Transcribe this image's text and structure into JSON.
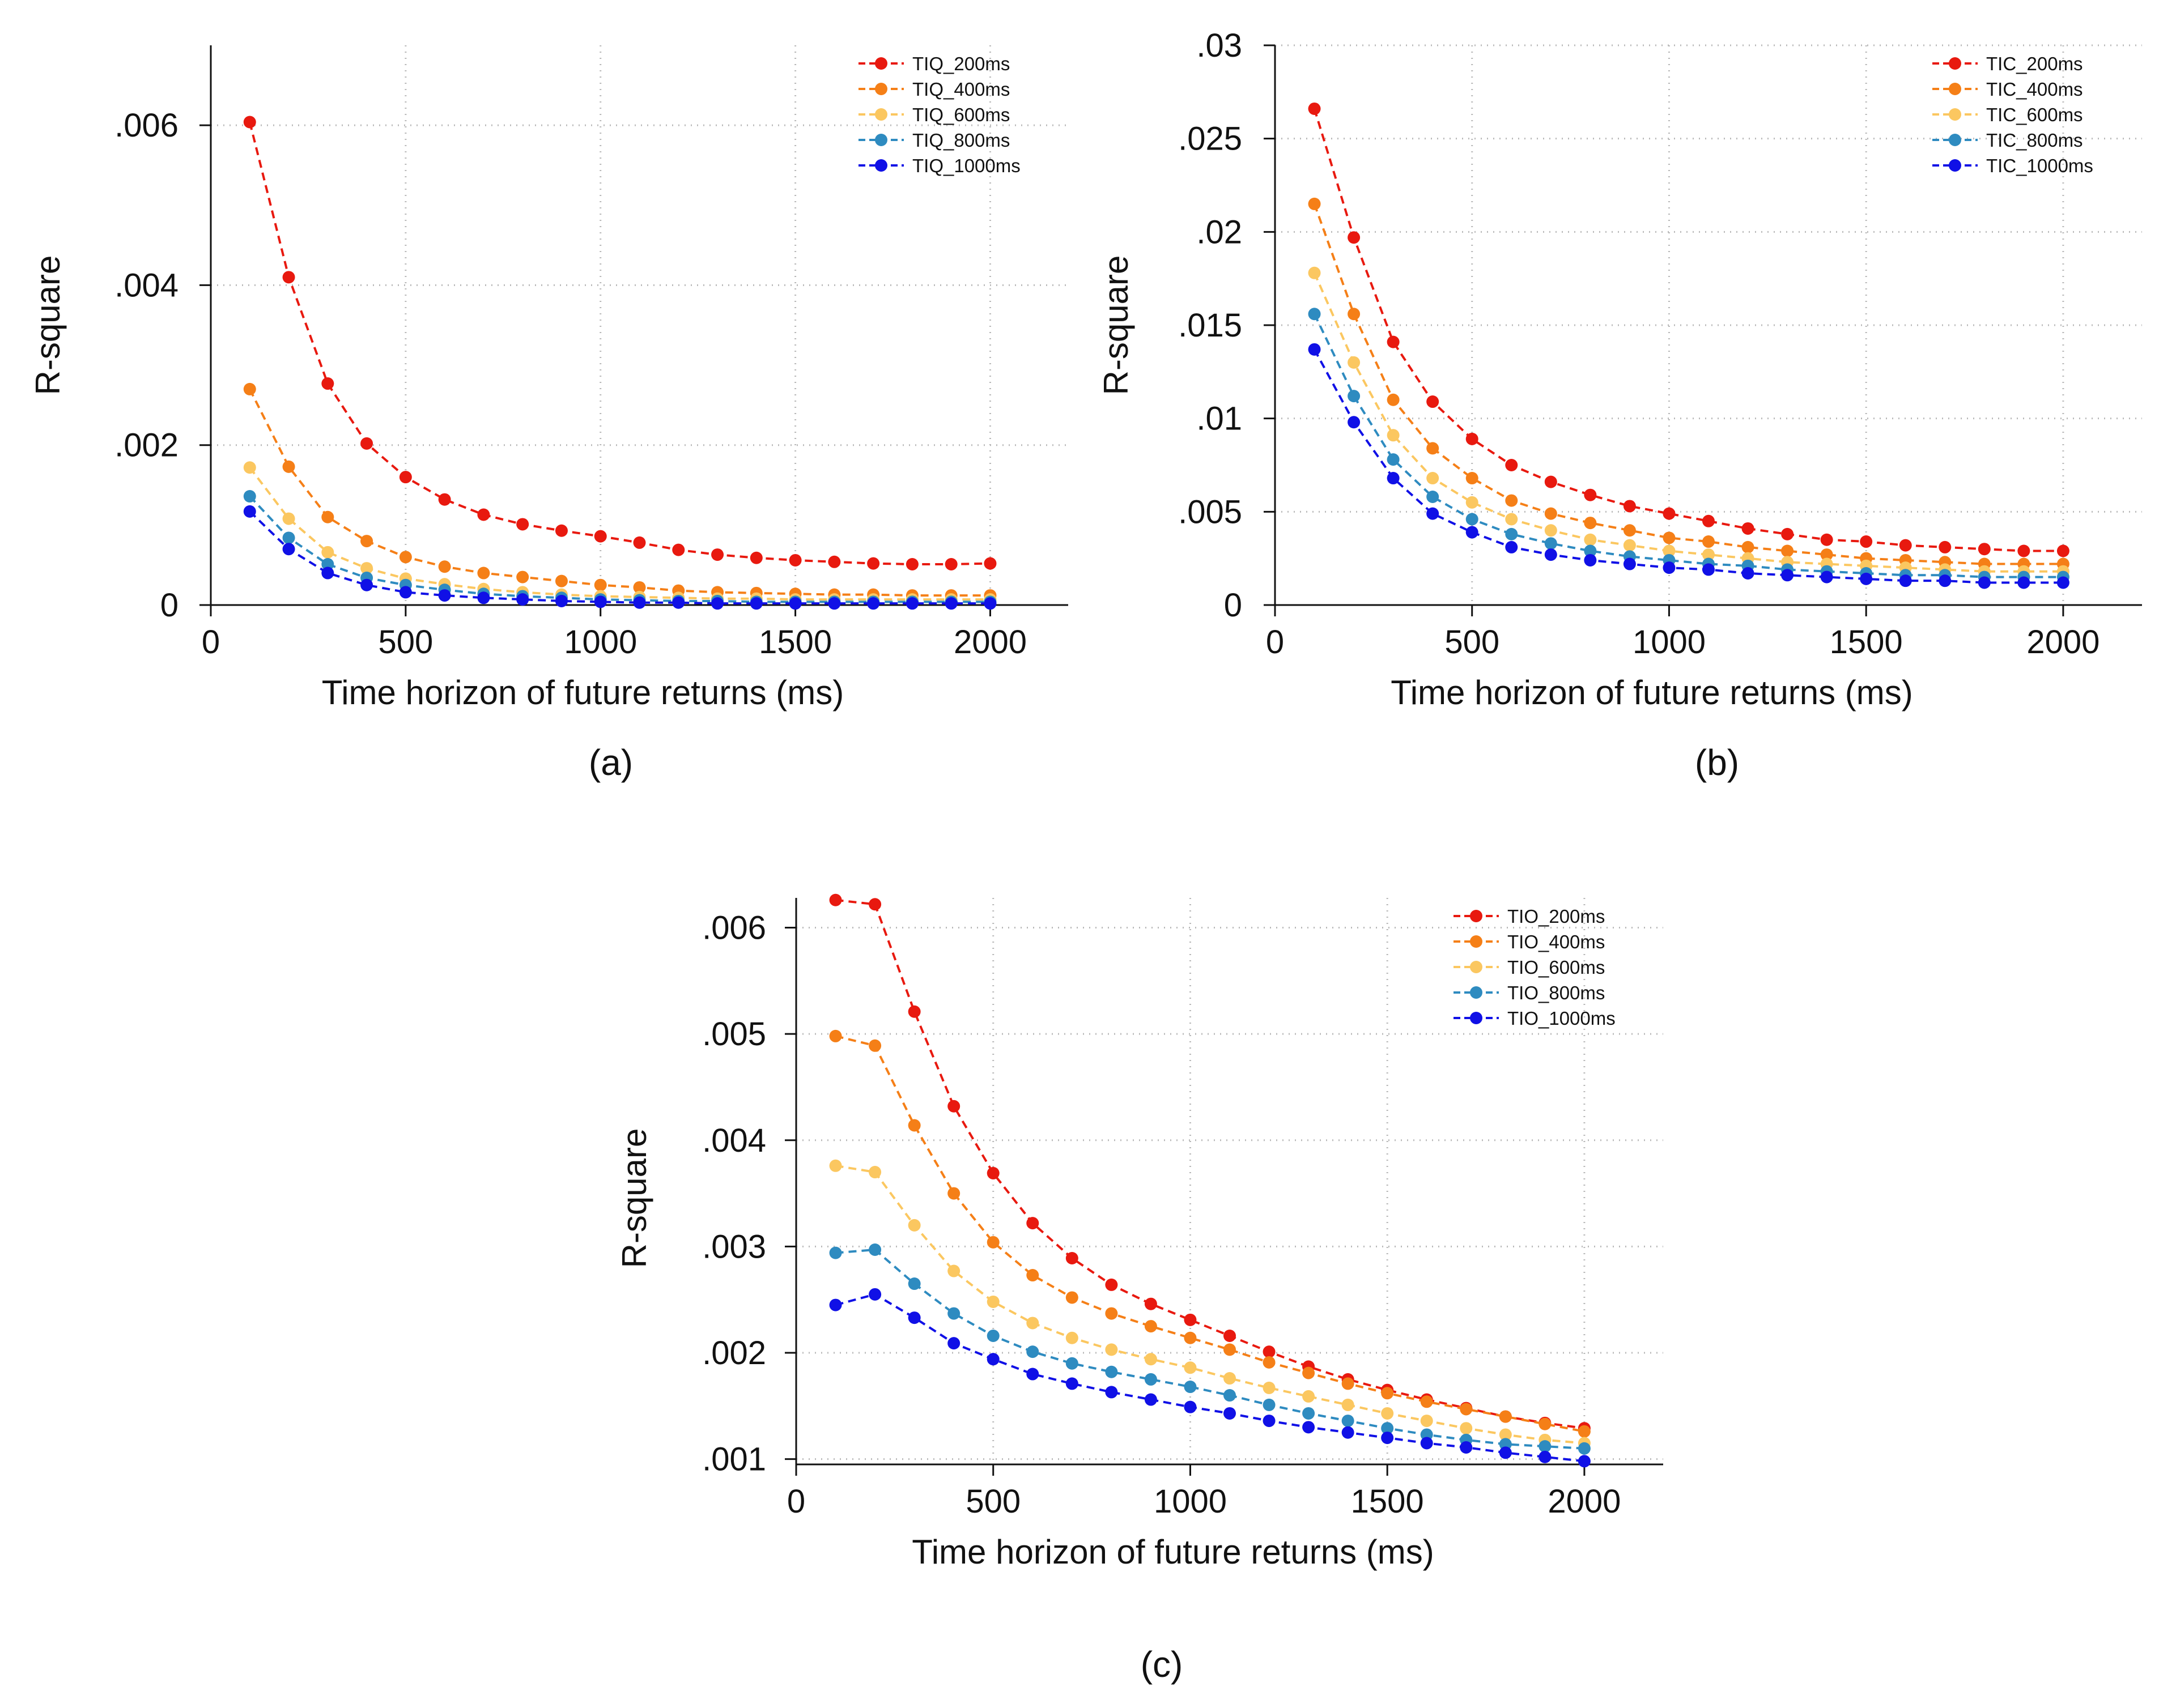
{
  "chart_data": [
    {
      "type": "line",
      "caption": "(a)",
      "xlabel": "Time horizon of future returns (ms)",
      "ylabel": "R-square",
      "xlim": [
        0,
        2200
      ],
      "ylim": [
        0,
        0.007
      ],
      "xticks": [
        0,
        500,
        1000,
        1500,
        2000
      ],
      "xtick_labels": [
        "0",
        "500",
        "1000",
        "1500",
        "2000"
      ],
      "yticks": [
        0,
        0.002,
        0.004,
        0.006
      ],
      "ytick_labels": [
        "0",
        ".002",
        ".004",
        ".006"
      ],
      "grid": true,
      "legend_position": "top-right",
      "x": [
        100,
        200,
        300,
        400,
        500,
        600,
        700,
        800,
        900,
        1000,
        1100,
        1200,
        1300,
        1400,
        1500,
        1600,
        1700,
        1800,
        1900,
        2000
      ],
      "series": [
        {
          "name": "TIQ_200ms",
          "color": "#e8190f",
          "values": [
            0.00604,
            0.0041,
            0.00277,
            0.00202,
            0.0016,
            0.00132,
            0.00113,
            0.00101,
            0.00093,
            0.00086,
            0.00078,
            0.00069,
            0.00063,
            0.00059,
            0.00056,
            0.00054,
            0.00052,
            0.00051,
            0.00051,
            0.00052
          ]
        },
        {
          "name": "TIQ_400ms",
          "color": "#f57f17",
          "values": [
            0.0027,
            0.00173,
            0.0011,
            0.0008,
            0.0006,
            0.00048,
            0.0004,
            0.00035,
            0.0003,
            0.00025,
            0.00022,
            0.00018,
            0.00016,
            0.00015,
            0.00014,
            0.00013,
            0.00013,
            0.00012,
            0.00012,
            0.00012
          ]
        },
        {
          "name": "TIQ_600ms",
          "color": "#fbc760",
          "values": [
            0.00172,
            0.00108,
            0.00066,
            0.00046,
            0.00033,
            0.00026,
            0.0002,
            0.00016,
            0.00013,
            0.00011,
            0.0001,
            9e-05,
            8e-05,
            8e-05,
            7e-05,
            7e-05,
            7e-05,
            7e-05,
            7e-05,
            7e-05
          ]
        },
        {
          "name": "TIQ_800ms",
          "color": "#2e8bc0",
          "values": [
            0.00136,
            0.00084,
            0.00051,
            0.00034,
            0.00025,
            0.00019,
            0.00014,
            0.00011,
            9e-05,
            7e-05,
            6e-05,
            5e-05,
            5e-05,
            4e-05,
            4e-05,
            4e-05,
            4e-05,
            4e-05,
            4e-05,
            4e-05
          ]
        },
        {
          "name": "TIQ_1000ms",
          "color": "#1010e6",
          "values": [
            0.00117,
            0.0007,
            0.0004,
            0.00025,
            0.00016,
            0.00012,
            9e-05,
            7e-05,
            5e-05,
            4e-05,
            3e-05,
            3e-05,
            2e-05,
            2e-05,
            2e-05,
            2e-05,
            2e-05,
            2e-05,
            2e-05,
            2e-05
          ]
        }
      ]
    },
    {
      "type": "line",
      "caption": "(b)",
      "xlabel": "Time horizon of future returns (ms)",
      "ylabel": "R-square",
      "xlim": [
        0,
        2200
      ],
      "ylim": [
        0,
        0.03
      ],
      "xticks": [
        0,
        500,
        1000,
        1500,
        2000
      ],
      "xtick_labels": [
        "0",
        "500",
        "1000",
        "1500",
        "2000"
      ],
      "yticks": [
        0,
        0.005,
        0.01,
        0.015,
        0.02,
        0.025,
        0.03
      ],
      "ytick_labels": [
        "0",
        ".005",
        ".01",
        ".015",
        ".02",
        ".025",
        ".03"
      ],
      "grid": true,
      "legend_position": "top-right",
      "x": [
        100,
        200,
        300,
        400,
        500,
        600,
        700,
        800,
        900,
        1000,
        1100,
        1200,
        1300,
        1400,
        1500,
        1600,
        1700,
        1800,
        1900,
        2000
      ],
      "series": [
        {
          "name": "TIC_200ms",
          "color": "#e8190f",
          "values": [
            0.0266,
            0.0197,
            0.0141,
            0.0109,
            0.0089,
            0.0075,
            0.0066,
            0.0059,
            0.0053,
            0.0049,
            0.0045,
            0.0041,
            0.0038,
            0.0035,
            0.0034,
            0.0032,
            0.0031,
            0.003,
            0.0029,
            0.0029
          ]
        },
        {
          "name": "TIC_400ms",
          "color": "#f57f17",
          "values": [
            0.0215,
            0.0156,
            0.011,
            0.0084,
            0.0068,
            0.0056,
            0.0049,
            0.0044,
            0.004,
            0.0036,
            0.0034,
            0.0031,
            0.0029,
            0.0027,
            0.0025,
            0.0024,
            0.0023,
            0.0022,
            0.0022,
            0.0022
          ]
        },
        {
          "name": "TIC_600ms",
          "color": "#fbc760",
          "values": [
            0.0178,
            0.013,
            0.0091,
            0.0068,
            0.0055,
            0.0046,
            0.004,
            0.0035,
            0.0032,
            0.0029,
            0.0027,
            0.0025,
            0.0023,
            0.0022,
            0.0021,
            0.002,
            0.0019,
            0.0018,
            0.0018,
            0.0018
          ]
        },
        {
          "name": "TIC_800ms",
          "color": "#2e8bc0",
          "values": [
            0.0156,
            0.0112,
            0.0078,
            0.0058,
            0.0046,
            0.0038,
            0.0033,
            0.0029,
            0.0026,
            0.0024,
            0.0022,
            0.0021,
            0.0019,
            0.0018,
            0.0017,
            0.0016,
            0.0016,
            0.0015,
            0.0015,
            0.0015
          ]
        },
        {
          "name": "TIC_1000ms",
          "color": "#1010e6",
          "values": [
            0.0137,
            0.0098,
            0.0068,
            0.0049,
            0.0039,
            0.0031,
            0.0027,
            0.0024,
            0.0022,
            0.002,
            0.0019,
            0.0017,
            0.0016,
            0.0015,
            0.0014,
            0.0013,
            0.0013,
            0.0012,
            0.0012,
            0.0012
          ]
        }
      ]
    },
    {
      "type": "line",
      "caption": "(c)",
      "xlabel": "Time horizon of future returns (ms)",
      "ylabel": "R-square",
      "xlim": [
        0,
        2200
      ],
      "ylim": [
        0.00095,
        0.00628
      ],
      "xticks": [
        0,
        500,
        1000,
        1500,
        2000
      ],
      "xtick_labels": [
        "0",
        "500",
        "1000",
        "1500",
        "2000"
      ],
      "yticks": [
        0.001,
        0.002,
        0.003,
        0.004,
        0.005,
        0.006
      ],
      "ytick_labels": [
        ".001",
        ".002",
        ".003",
        ".004",
        ".005",
        ".006"
      ],
      "grid": true,
      "legend_position": "top-right",
      "x": [
        100,
        200,
        300,
        400,
        500,
        600,
        700,
        800,
        900,
        1000,
        1100,
        1200,
        1300,
        1400,
        1500,
        1600,
        1700,
        1800,
        1900,
        2000
      ],
      "series": [
        {
          "name": "TIO_200ms",
          "color": "#e8190f",
          "values": [
            0.00626,
            0.00622,
            0.00521,
            0.00432,
            0.00369,
            0.00322,
            0.00289,
            0.00264,
            0.00246,
            0.00231,
            0.00216,
            0.00201,
            0.00187,
            0.00175,
            0.00165,
            0.00156,
            0.00148,
            0.0014,
            0.00134,
            0.00129
          ]
        },
        {
          "name": "TIO_400ms",
          "color": "#f57f17",
          "values": [
            0.00498,
            0.00489,
            0.00414,
            0.0035,
            0.00304,
            0.00273,
            0.00252,
            0.00237,
            0.00225,
            0.00214,
            0.00203,
            0.00191,
            0.00181,
            0.00171,
            0.00162,
            0.00154,
            0.00147,
            0.0014,
            0.00133,
            0.00126
          ]
        },
        {
          "name": "TIO_600ms",
          "color": "#fbc760",
          "values": [
            0.00376,
            0.0037,
            0.0032,
            0.00277,
            0.00248,
            0.00228,
            0.00214,
            0.00203,
            0.00194,
            0.00186,
            0.00176,
            0.00167,
            0.00159,
            0.00151,
            0.00143,
            0.00136,
            0.00129,
            0.00123,
            0.00118,
            0.00115
          ]
        },
        {
          "name": "TIO_800ms",
          "color": "#2e8bc0",
          "values": [
            0.00294,
            0.00297,
            0.00265,
            0.00237,
            0.00216,
            0.00201,
            0.0019,
            0.00182,
            0.00175,
            0.00168,
            0.0016,
            0.00151,
            0.00143,
            0.00136,
            0.00129,
            0.00123,
            0.00118,
            0.00114,
            0.00112,
            0.0011
          ]
        },
        {
          "name": "TIO_1000ms",
          "color": "#1010e6",
          "values": [
            0.00245,
            0.00255,
            0.00233,
            0.00209,
            0.00194,
            0.0018,
            0.00171,
            0.00163,
            0.00156,
            0.00149,
            0.00143,
            0.00136,
            0.0013,
            0.00125,
            0.0012,
            0.00115,
            0.00111,
            0.00106,
            0.00102,
            0.00098
          ]
        }
      ]
    }
  ]
}
